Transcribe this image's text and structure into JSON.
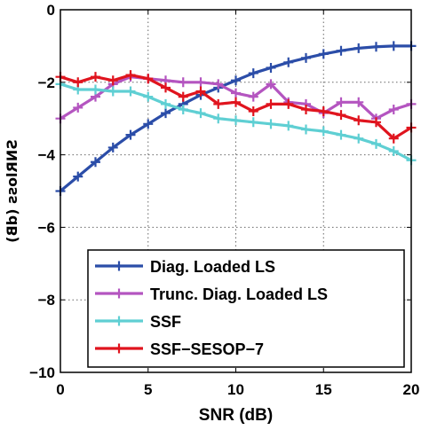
{
  "chart_data": {
    "type": "line",
    "title": "",
    "xlabel": "SNR (dB)",
    "ylabel": "SNRloss (dB)",
    "xlim": [
      0,
      20
    ],
    "ylim": [
      -10,
      0
    ],
    "xticks": [
      0,
      5,
      10,
      15,
      20
    ],
    "yticks": [
      0,
      -2,
      -4,
      -6,
      -8,
      -10
    ],
    "xtick_labels": [
      "0",
      "5",
      "10",
      "15",
      "20"
    ],
    "ytick_labels": [
      "0",
      "−2",
      "−4",
      "−6",
      "−8",
      "−10"
    ],
    "grid": true,
    "legend_position": "bottom-right",
    "x": [
      0,
      1,
      2,
      3,
      4,
      5,
      6,
      7,
      8,
      9,
      10,
      11,
      12,
      13,
      14,
      15,
      16,
      17,
      18,
      19,
      20
    ],
    "series": [
      {
        "name": "Diag. Loaded LS",
        "color": "#2b4da8",
        "values": [
          -5.0,
          -4.6,
          -4.2,
          -3.8,
          -3.45,
          -3.15,
          -2.85,
          -2.6,
          -2.35,
          -2.15,
          -1.95,
          -1.75,
          -1.6,
          -1.45,
          -1.33,
          -1.22,
          -1.13,
          -1.06,
          -1.02,
          -1.0,
          -1.0
        ]
      },
      {
        "name": "Trunc. Diag. Loaded LS",
        "color": "#b455c0",
        "values": [
          -3.0,
          -2.7,
          -2.4,
          -2.05,
          -1.85,
          -1.9,
          -1.95,
          -2.0,
          -2.0,
          -2.05,
          -2.3,
          -2.4,
          -2.05,
          -2.55,
          -2.6,
          -2.85,
          -2.55,
          -2.55,
          -3.0,
          -2.75,
          -2.6
        ]
      },
      {
        "name": "SSF",
        "color": "#5fcfd3",
        "values": [
          -2.05,
          -2.2,
          -2.2,
          -2.25,
          -2.25,
          -2.4,
          -2.6,
          -2.75,
          -2.85,
          -3.0,
          -3.05,
          -3.1,
          -3.15,
          -3.2,
          -3.3,
          -3.35,
          -3.45,
          -3.55,
          -3.7,
          -3.9,
          -4.15
        ]
      },
      {
        "name": "SSF−SESOP−7",
        "color": "#e0141e",
        "values": [
          -1.85,
          -2.0,
          -1.85,
          -1.95,
          -1.8,
          -1.9,
          -2.15,
          -2.4,
          -2.25,
          -2.6,
          -2.55,
          -2.8,
          -2.6,
          -2.6,
          -2.75,
          -2.8,
          -2.9,
          -3.05,
          -3.1,
          -3.55,
          -3.25
        ]
      }
    ]
  }
}
